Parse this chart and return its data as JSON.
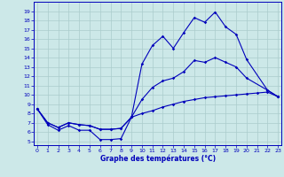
{
  "xlabel": "Graphe des températures (°C)",
  "bg_color": "#cce8e8",
  "grid_color": "#aacccc",
  "line_color": "#0000bb",
  "x_ticks": [
    0,
    1,
    2,
    3,
    4,
    5,
    6,
    7,
    8,
    9,
    10,
    11,
    12,
    13,
    14,
    15,
    16,
    17,
    18,
    19,
    20,
    21,
    22,
    23
  ],
  "y_ticks": [
    5,
    6,
    7,
    8,
    9,
    10,
    11,
    12,
    13,
    14,
    15,
    16,
    17,
    18,
    19
  ],
  "ylim": [
    4.6,
    20.0
  ],
  "xlim": [
    -0.3,
    23.3
  ],
  "max_x": [
    0,
    1,
    2,
    3,
    4,
    5,
    6,
    7,
    8,
    9,
    10,
    11,
    12,
    13,
    14,
    15,
    16,
    17,
    18,
    19,
    20,
    22,
    23
  ],
  "max_y": [
    8.5,
    6.8,
    6.2,
    6.7,
    6.2,
    6.2,
    5.2,
    5.2,
    5.3,
    7.6,
    13.3,
    15.3,
    16.3,
    15.0,
    16.7,
    18.3,
    17.8,
    18.9,
    17.3,
    16.5,
    13.8,
    10.5,
    9.8
  ],
  "mid_x": [
    0,
    1,
    2,
    3,
    4,
    5,
    6,
    7,
    8,
    9,
    10,
    11,
    12,
    13,
    14,
    15,
    16,
    17,
    18,
    19,
    20,
    22,
    23
  ],
  "mid_y": [
    8.5,
    7.0,
    6.5,
    7.0,
    6.8,
    6.7,
    6.3,
    6.3,
    6.4,
    7.6,
    9.5,
    10.8,
    11.5,
    11.8,
    12.5,
    13.7,
    13.5,
    14.0,
    13.5,
    13.0,
    11.8,
    10.5,
    9.8
  ],
  "min_x": [
    0,
    1,
    2,
    3,
    4,
    5,
    6,
    7,
    8,
    9,
    10,
    11,
    12,
    13,
    14,
    15,
    16,
    17,
    18,
    19,
    20,
    21,
    22,
    23
  ],
  "min_y": [
    8.5,
    7.0,
    6.5,
    7.0,
    6.8,
    6.7,
    6.3,
    6.3,
    6.4,
    7.6,
    8.0,
    8.3,
    8.7,
    9.0,
    9.3,
    9.5,
    9.7,
    9.8,
    9.9,
    10.0,
    10.1,
    10.2,
    10.3,
    9.8
  ]
}
